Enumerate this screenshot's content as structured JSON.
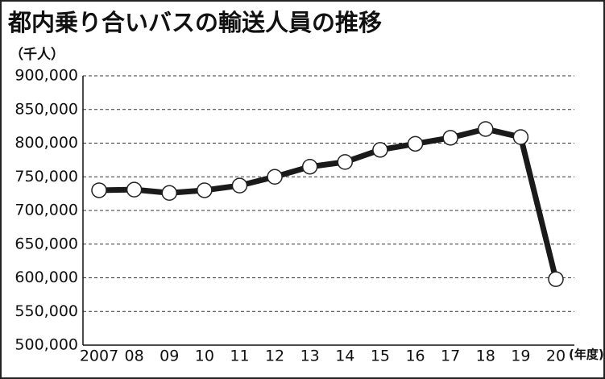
{
  "chart_data": {
    "type": "line",
    "title": "都内乗り合いバスの輸送人員の推移",
    "y_label": "（千人）",
    "x_label": "(年度)",
    "categories": [
      "2007",
      "08",
      "09",
      "10",
      "11",
      "12",
      "13",
      "14",
      "15",
      "16",
      "17",
      "18",
      "19",
      "20"
    ],
    "values": [
      730000,
      731000,
      726000,
      730000,
      737000,
      750000,
      765000,
      772000,
      790000,
      799000,
      808000,
      821000,
      809000,
      598000
    ],
    "color": "#1a1a1a",
    "ylim": [
      500000,
      900000
    ],
    "yticks": [
      {
        "value": 500000,
        "label": "500,000"
      },
      {
        "value": 550000,
        "label": "550,000"
      },
      {
        "value": 600000,
        "label": "600,000"
      },
      {
        "value": 650000,
        "label": "650,000"
      },
      {
        "value": 700000,
        "label": "700,000"
      },
      {
        "value": 750000,
        "label": "750,000"
      },
      {
        "value": 800000,
        "label": "800,000"
      },
      {
        "value": 850000,
        "label": "850,000"
      },
      {
        "value": 900000,
        "label": "900,000"
      }
    ],
    "grid": true
  }
}
